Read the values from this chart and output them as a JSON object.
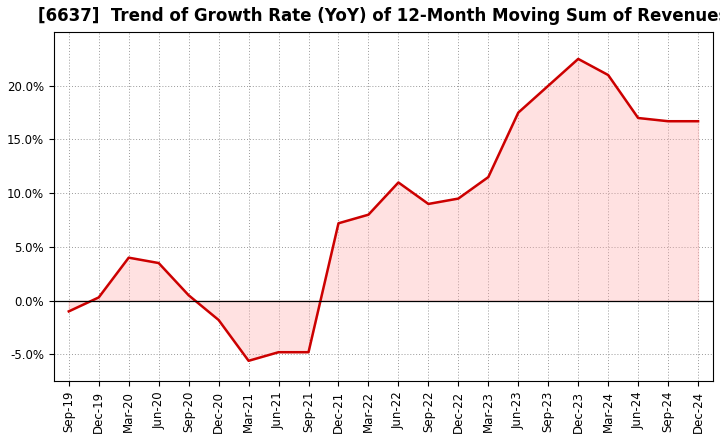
{
  "title": "[6637]  Trend of Growth Rate (YoY) of 12-Month Moving Sum of Revenues",
  "x_labels": [
    "Sep-19",
    "Dec-19",
    "Mar-20",
    "Jun-20",
    "Sep-20",
    "Dec-20",
    "Mar-21",
    "Jun-21",
    "Sep-21",
    "Dec-21",
    "Mar-22",
    "Jun-22",
    "Sep-22",
    "Dec-22",
    "Mar-23",
    "Jun-23",
    "Sep-23",
    "Dec-23",
    "Mar-24",
    "Jun-24",
    "Sep-24",
    "Dec-24"
  ],
  "y_values": [
    -1.0,
    0.3,
    4.0,
    3.5,
    0.5,
    -1.8,
    -5.6,
    -4.8,
    -4.8,
    7.2,
    8.0,
    11.0,
    9.0,
    9.5,
    11.5,
    17.5,
    20.0,
    22.5,
    21.0,
    17.0,
    16.7,
    16.7
  ],
  "line_color": "#cc0000",
  "fill_color": "#ffaaaa",
  "fill_alpha": 0.35,
  "background_color": "#ffffff",
  "plot_bg_color": "#ffffff",
  "grid_color": "#999999",
  "ylim": [
    -7.5,
    25
  ],
  "yticks": [
    -5.0,
    0.0,
    5.0,
    10.0,
    15.0,
    20.0
  ],
  "title_fontsize": 12,
  "tick_fontsize": 8.5,
  "line_width": 1.8
}
